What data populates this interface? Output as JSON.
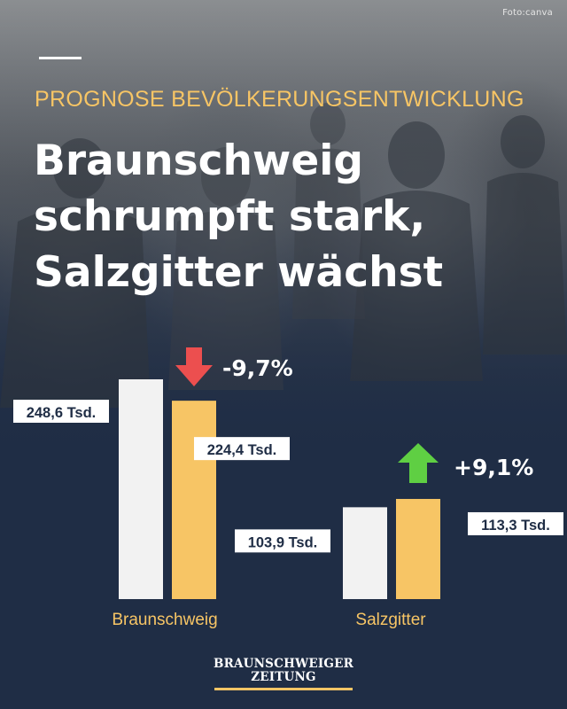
{
  "credit": "Foto:canva",
  "kicker": "PROGNOSE BEVÖLKERUNGSENTWICKLUNG",
  "headline": {
    "line1": "Braunschweig",
    "line2": "schrumpft stark,",
    "line3": "Salzgitter wächst"
  },
  "brand": {
    "line1": "BRAUNSCHWEIGER",
    "line2": "ZEITUNG"
  },
  "colors": {
    "background": "#1f2d45",
    "accent": "#f7c565",
    "bar_before": "#f2f2f2",
    "bar_after": "#f7c565",
    "arrow_down": "#ec4f4f",
    "arrow_up": "#5fcf43"
  },
  "chart_data": {
    "type": "bar",
    "categories": [
      "Braunschweig",
      "Salzgitter"
    ],
    "series": [
      {
        "values": [
          248.6,
          103.9
        ],
        "labels": [
          "248,6 Tsd.",
          "103,9 Tsd."
        ]
      },
      {
        "values": [
          224.4,
          113.3
        ],
        "labels": [
          "224,4 Tsd.",
          "113,3 Tsd."
        ]
      }
    ],
    "changes": [
      {
        "category": "Braunschweig",
        "label": "-9,7%",
        "direction": "down"
      },
      {
        "category": "Salzgitter",
        "label": "+9,1%",
        "direction": "up"
      }
    ],
    "unit": "Tsd.",
    "ylim": [
      0,
      248.6
    ],
    "grid": false,
    "legend": "none"
  }
}
